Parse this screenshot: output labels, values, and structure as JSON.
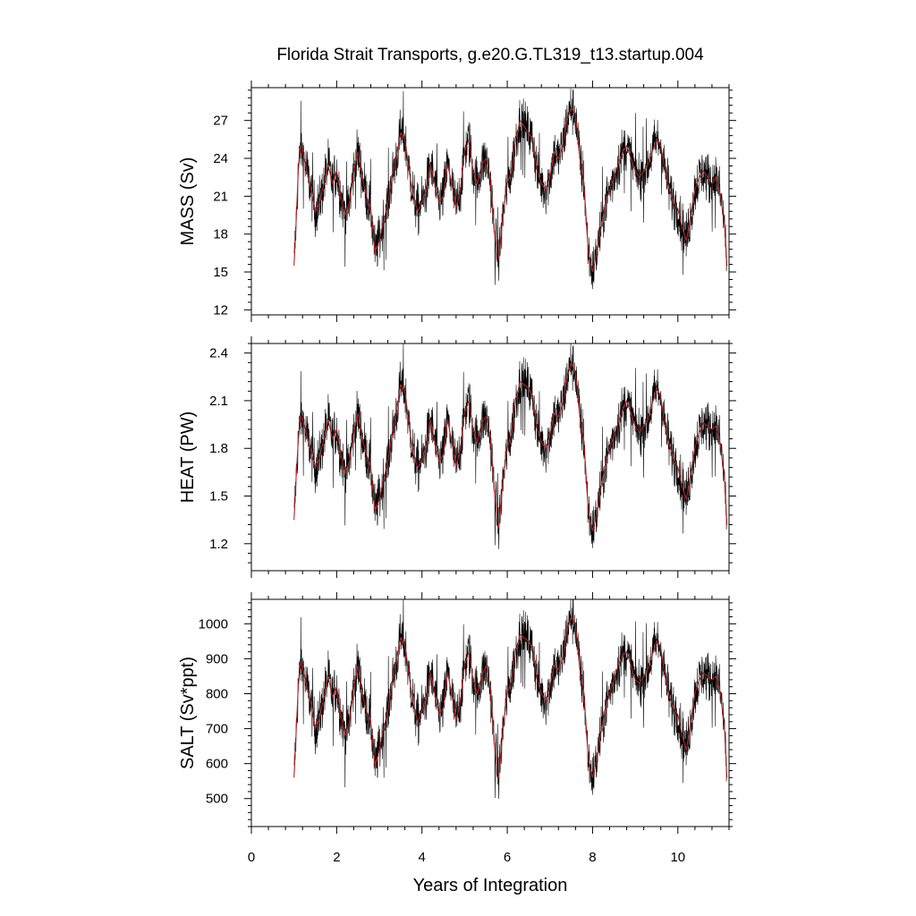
{
  "chart_data": {
    "type": "line",
    "title": "Florida Strait Transports, g.e20.G.TL319_t13.startup.004",
    "xlabel": "Years of Integration",
    "xlim": [
      0,
      11.2
    ],
    "x_ticks": [
      0,
      2,
      4,
      6,
      8,
      10
    ],
    "x_tick_labels": [
      "0",
      "2",
      "4",
      "6",
      "8",
      "10"
    ],
    "grid": false,
    "legend": "none",
    "colors": {
      "raw": "#000000",
      "smoothed": "#b22222"
    },
    "panels": [
      {
        "ylabel": "MASS (Sv)",
        "ylim": [
          11.6,
          29.6
        ],
        "y_ticks": [
          12,
          15,
          18,
          21,
          24,
          27
        ],
        "y_tick_labels": [
          "12",
          "15",
          "18",
          "21",
          "24",
          "27"
        ],
        "series": [
          {
            "style": "smoothed (red)",
            "x": [
              1.0,
              1.05,
              1.1,
              1.15,
              1.2,
              1.3,
              1.4,
              1.5,
              1.6,
              1.7,
              1.8,
              1.9,
              2.0,
              2.1,
              2.2,
              2.3,
              2.4,
              2.5,
              2.6,
              2.7,
              2.8,
              2.9,
              3.0,
              3.1,
              3.2,
              3.3,
              3.4,
              3.5,
              3.6,
              3.7,
              3.8,
              3.9,
              4.0,
              4.1,
              4.2,
              4.3,
              4.4,
              4.5,
              4.6,
              4.7,
              4.8,
              4.9,
              5.0,
              5.1,
              5.2,
              5.3,
              5.4,
              5.5,
              5.6,
              5.7,
              5.8,
              5.9,
              6.0,
              6.1,
              6.2,
              6.3,
              6.4,
              6.5,
              6.6,
              6.7,
              6.8,
              6.9,
              7.0,
              7.1,
              7.2,
              7.3,
              7.4,
              7.5,
              7.6,
              7.7,
              7.8,
              7.9,
              8.0,
              8.1,
              8.2,
              8.3,
              8.4,
              8.5,
              8.6,
              8.7,
              8.8,
              8.9,
              9.0,
              9.1,
              9.2,
              9.3,
              9.4,
              9.5,
              9.6,
              9.7,
              9.8,
              9.9,
              10.0,
              10.1,
              10.2,
              10.3,
              10.4,
              10.5,
              10.6,
              10.7,
              10.8,
              10.9,
              11.0,
              11.1,
              11.15
            ],
            "values": [
              15.5,
              19.0,
              23.0,
              25.0,
              24.5,
              23.0,
              21.5,
              19.8,
              20.5,
              22.0,
              23.5,
              22.0,
              23.0,
              21.0,
              19.5,
              20.5,
              23.0,
              24.5,
              22.5,
              21.0,
              20.0,
              16.5,
              17.5,
              19.0,
              20.5,
              22.5,
              24.0,
              26.0,
              25.5,
              23.0,
              21.0,
              19.8,
              20.5,
              21.5,
              23.5,
              22.0,
              20.5,
              21.0,
              23.5,
              22.0,
              20.0,
              21.5,
              24.5,
              25.5,
              23.0,
              22.0,
              23.5,
              24.0,
              22.5,
              18.0,
              16.0,
              19.5,
              22.0,
              23.0,
              25.5,
              27.0,
              26.5,
              26.0,
              25.5,
              23.0,
              22.0,
              21.5,
              22.5,
              24.5,
              24.0,
              25.0,
              27.0,
              28.0,
              27.5,
              24.0,
              22.0,
              16.5,
              15.0,
              16.5,
              18.5,
              20.5,
              21.5,
              22.5,
              23.5,
              24.5,
              25.0,
              24.0,
              23.0,
              22.5,
              23.0,
              23.5,
              24.5,
              25.5,
              25.0,
              23.0,
              21.5,
              20.5,
              20.0,
              18.5,
              17.5,
              19.5,
              21.5,
              22.5,
              23.0,
              22.5,
              22.0,
              22.5,
              21.0,
              18.5,
              15.5
            ]
          }
        ]
      },
      {
        "ylabel": "HEAT (PW)",
        "ylim": [
          1.03,
          2.46
        ],
        "y_ticks": [
          1.2,
          1.5,
          1.8,
          2.1,
          2.4
        ],
        "y_tick_labels": [
          "1.2",
          "1.5",
          "1.8",
          "2.1",
          "2.4"
        ],
        "series": [
          {
            "style": "smoothed (red)",
            "x": [
              1.0,
              1.05,
              1.1,
              1.15,
              1.2,
              1.3,
              1.4,
              1.5,
              1.6,
              1.7,
              1.8,
              1.9,
              2.0,
              2.1,
              2.2,
              2.3,
              2.4,
              2.5,
              2.6,
              2.7,
              2.8,
              2.9,
              3.0,
              3.1,
              3.2,
              3.3,
              3.4,
              3.5,
              3.6,
              3.7,
              3.8,
              3.9,
              4.0,
              4.1,
              4.2,
              4.3,
              4.4,
              4.5,
              4.6,
              4.7,
              4.8,
              4.9,
              5.0,
              5.1,
              5.2,
              5.3,
              5.4,
              5.5,
              5.6,
              5.7,
              5.8,
              5.9,
              6.0,
              6.1,
              6.2,
              6.3,
              6.4,
              6.5,
              6.6,
              6.7,
              6.8,
              6.9,
              7.0,
              7.1,
              7.2,
              7.3,
              7.4,
              7.5,
              7.6,
              7.7,
              7.8,
              7.9,
              8.0,
              8.1,
              8.2,
              8.3,
              8.4,
              8.5,
              8.6,
              8.7,
              8.8,
              8.9,
              9.0,
              9.1,
              9.2,
              9.3,
              9.4,
              9.5,
              9.6,
              9.7,
              9.8,
              9.9,
              10.0,
              10.1,
              10.2,
              10.3,
              10.4,
              10.5,
              10.6,
              10.7,
              10.8,
              10.9,
              11.0,
              11.1,
              11.15
            ],
            "values": [
              1.35,
              1.62,
              1.85,
              2.0,
              1.98,
              1.88,
              1.78,
              1.68,
              1.74,
              1.86,
              1.98,
              1.86,
              1.92,
              1.76,
              1.64,
              1.72,
              1.9,
              2.02,
              1.86,
              1.76,
              1.68,
              1.4,
              1.48,
              1.6,
              1.72,
              1.88,
              2.02,
              2.2,
              2.16,
              1.94,
              1.76,
              1.68,
              1.72,
              1.82,
              1.98,
              1.84,
              1.72,
              1.76,
              1.98,
              1.84,
              1.68,
              1.8,
              2.02,
              2.1,
              1.92,
              1.84,
              1.96,
              2.0,
              1.88,
              1.52,
              1.3,
              1.6,
              1.8,
              1.9,
              2.1,
              2.22,
              2.2,
              2.18,
              2.12,
              1.92,
              1.84,
              1.8,
              1.88,
              2.02,
              2.0,
              2.08,
              2.24,
              2.34,
              2.28,
              2.0,
              1.84,
              1.4,
              1.28,
              1.38,
              1.56,
              1.7,
              1.8,
              1.88,
              1.96,
              2.04,
              2.1,
              2.02,
              1.94,
              1.9,
              1.94,
              1.98,
              2.08,
              2.18,
              2.12,
              1.94,
              1.82,
              1.74,
              1.68,
              1.56,
              1.48,
              1.64,
              1.8,
              1.9,
              1.96,
              1.94,
              1.92,
              1.94,
              1.82,
              1.58,
              1.32
            ]
          }
        ]
      },
      {
        "ylabel": "SALT (Sv*ppt)",
        "ylim": [
          420,
          1070
        ],
        "y_ticks": [
          500,
          600,
          700,
          800,
          900,
          1000
        ],
        "y_tick_labels": [
          "500",
          "600",
          "700",
          "800",
          "900",
          "1000"
        ],
        "series": [
          {
            "style": "smoothed (red)",
            "x": [
              1.0,
              1.05,
              1.1,
              1.15,
              1.2,
              1.3,
              1.4,
              1.5,
              1.6,
              1.7,
              1.8,
              1.9,
              2.0,
              2.1,
              2.2,
              2.3,
              2.4,
              2.5,
              2.6,
              2.7,
              2.8,
              2.9,
              3.0,
              3.1,
              3.2,
              3.3,
              3.4,
              3.5,
              3.6,
              3.7,
              3.8,
              3.9,
              4.0,
              4.1,
              4.2,
              4.3,
              4.4,
              4.5,
              4.6,
              4.7,
              4.8,
              4.9,
              5.0,
              5.1,
              5.2,
              5.3,
              5.4,
              5.5,
              5.6,
              5.7,
              5.8,
              5.9,
              6.0,
              6.1,
              6.2,
              6.3,
              6.4,
              6.5,
              6.6,
              6.7,
              6.8,
              6.9,
              7.0,
              7.1,
              7.2,
              7.3,
              7.4,
              7.5,
              7.6,
              7.7,
              7.8,
              7.9,
              8.0,
              8.1,
              8.2,
              8.3,
              8.4,
              8.5,
              8.6,
              8.7,
              8.8,
              8.9,
              9.0,
              9.1,
              9.2,
              9.3,
              9.4,
              9.5,
              9.6,
              9.7,
              9.8,
              9.9,
              10.0,
              10.1,
              10.2,
              10.3,
              10.4,
              10.5,
              10.6,
              10.7,
              10.8,
              10.9,
              11.0,
              11.1,
              11.15
            ],
            "values": [
              560,
              690,
              820,
              890,
              875,
              820,
              770,
              700,
              730,
              790,
              850,
              790,
              820,
              740,
              680,
              720,
              820,
              880,
              800,
              750,
              720,
              590,
              640,
              700,
              750,
              830,
              890,
              960,
              940,
              850,
              770,
              720,
              750,
              790,
              860,
              800,
              740,
              760,
              860,
              800,
              720,
              780,
              880,
              920,
              840,
              800,
              850,
              880,
              820,
              650,
              560,
              700,
              800,
              840,
              920,
              970,
              960,
              950,
              930,
              840,
              800,
              780,
              820,
              880,
              870,
              900,
              980,
              1020,
              1000,
              870,
              800,
              610,
              560,
              610,
              690,
              760,
              800,
              840,
              880,
              910,
              920,
              880,
              840,
              830,
              850,
              870,
              910,
              950,
              930,
              850,
              790,
              760,
              740,
              680,
              640,
              720,
              800,
              840,
              860,
              850,
              840,
              850,
              800,
              690,
              560
            ]
          }
        ]
      }
    ]
  }
}
